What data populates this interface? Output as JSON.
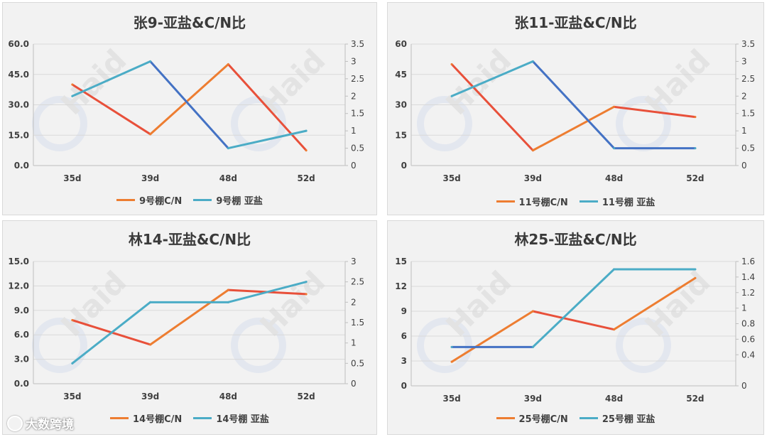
{
  "colors": {
    "cn": "#ed7d31",
    "cn_high": "#e8503a",
    "nitrite": "#4bacc6",
    "nitrite_low": "#4472c4",
    "panel_bg": "#f2f2f2",
    "grid": "#d9d9d9"
  },
  "watermark": {
    "text": "Haid",
    "site": "大数跨境"
  },
  "chart_data": [
    {
      "type": "line",
      "title": "张9-亚盐&C/N比",
      "categories": [
        "35d",
        "39d",
        "48d",
        "52d"
      ],
      "y_left": {
        "ticks": [
          "0.0",
          "15.0",
          "30.0",
          "45.0",
          "60.0"
        ],
        "lim": [
          0,
          60
        ]
      },
      "y_right": {
        "ticks": [
          "0",
          "0.5",
          "1",
          "1.5",
          "2",
          "2.5",
          "3",
          "3.5"
        ],
        "lim": [
          0,
          3.5
        ]
      },
      "series": [
        {
          "name": "9号棚C/N",
          "axis": "left",
          "values": [
            40,
            15.5,
            50,
            7.5
          ]
        },
        {
          "name": "9号棚 亚盐",
          "axis": "right",
          "values": [
            2.0,
            3.0,
            0.5,
            1.0
          ]
        }
      ],
      "legend": "bottom"
    },
    {
      "type": "line",
      "title": "张11-亚盐&C/N比",
      "categories": [
        "35d",
        "39d",
        "48d",
        "52d"
      ],
      "y_left": {
        "ticks": [
          "0",
          "15",
          "30",
          "45",
          "60"
        ],
        "lim": [
          0,
          60
        ]
      },
      "y_right": {
        "ticks": [
          "0",
          "0.5",
          "1",
          "1.5",
          "2",
          "2.5",
          "3",
          "3.5"
        ],
        "lim": [
          0,
          3.5
        ]
      },
      "series": [
        {
          "name": "11号棚C/N",
          "axis": "left",
          "values": [
            50,
            7.5,
            29,
            24
          ]
        },
        {
          "name": "11号棚 亚盐",
          "axis": "right",
          "values": [
            2.0,
            3.0,
            0.5,
            0.5
          ]
        }
      ],
      "legend": "bottom"
    },
    {
      "type": "line",
      "title": "林14-亚盐&C/N比",
      "categories": [
        "35d",
        "39d",
        "48d",
        "52d"
      ],
      "y_left": {
        "ticks": [
          "0.0",
          "3.0",
          "6.0",
          "9.0",
          "12.0",
          "15.0"
        ],
        "lim": [
          0,
          15
        ]
      },
      "y_right": {
        "ticks": [
          "0",
          "0.5",
          "1",
          "1.5",
          "2",
          "2.5",
          "3"
        ],
        "lim": [
          0,
          3
        ]
      },
      "series": [
        {
          "name": "14号棚C/N",
          "axis": "left",
          "values": [
            7.8,
            4.8,
            11.5,
            11.0
          ]
        },
        {
          "name": "14号棚 亚盐",
          "axis": "right",
          "values": [
            0.5,
            2.0,
            2.0,
            2.5
          ]
        }
      ],
      "legend": "bottom"
    },
    {
      "type": "line",
      "title": "林25-亚盐&C/N比",
      "categories": [
        "35d",
        "39d",
        "48d",
        "52d"
      ],
      "y_left": {
        "ticks": [
          "0",
          "3",
          "6",
          "9",
          "12",
          "15"
        ],
        "lim": [
          0,
          15
        ]
      },
      "y_right": {
        "ticks": [
          "0",
          "0.4",
          "0.6",
          "0.8",
          "1",
          "1.2",
          "1.4",
          "1.6"
        ],
        "lim": [
          0,
          1.6
        ],
        "tick_values": [
          0,
          0.4,
          0.6,
          0.8,
          1.0,
          1.2,
          1.4,
          1.6
        ]
      },
      "series": [
        {
          "name": "25号棚C/N",
          "axis": "left",
          "values": [
            2.9,
            9.0,
            6.8,
            13.0
          ]
        },
        {
          "name": "25号棚 亚盐",
          "axis": "right",
          "values": [
            0.5,
            0.5,
            1.5,
            1.5
          ]
        }
      ],
      "legend": "bottom"
    }
  ]
}
